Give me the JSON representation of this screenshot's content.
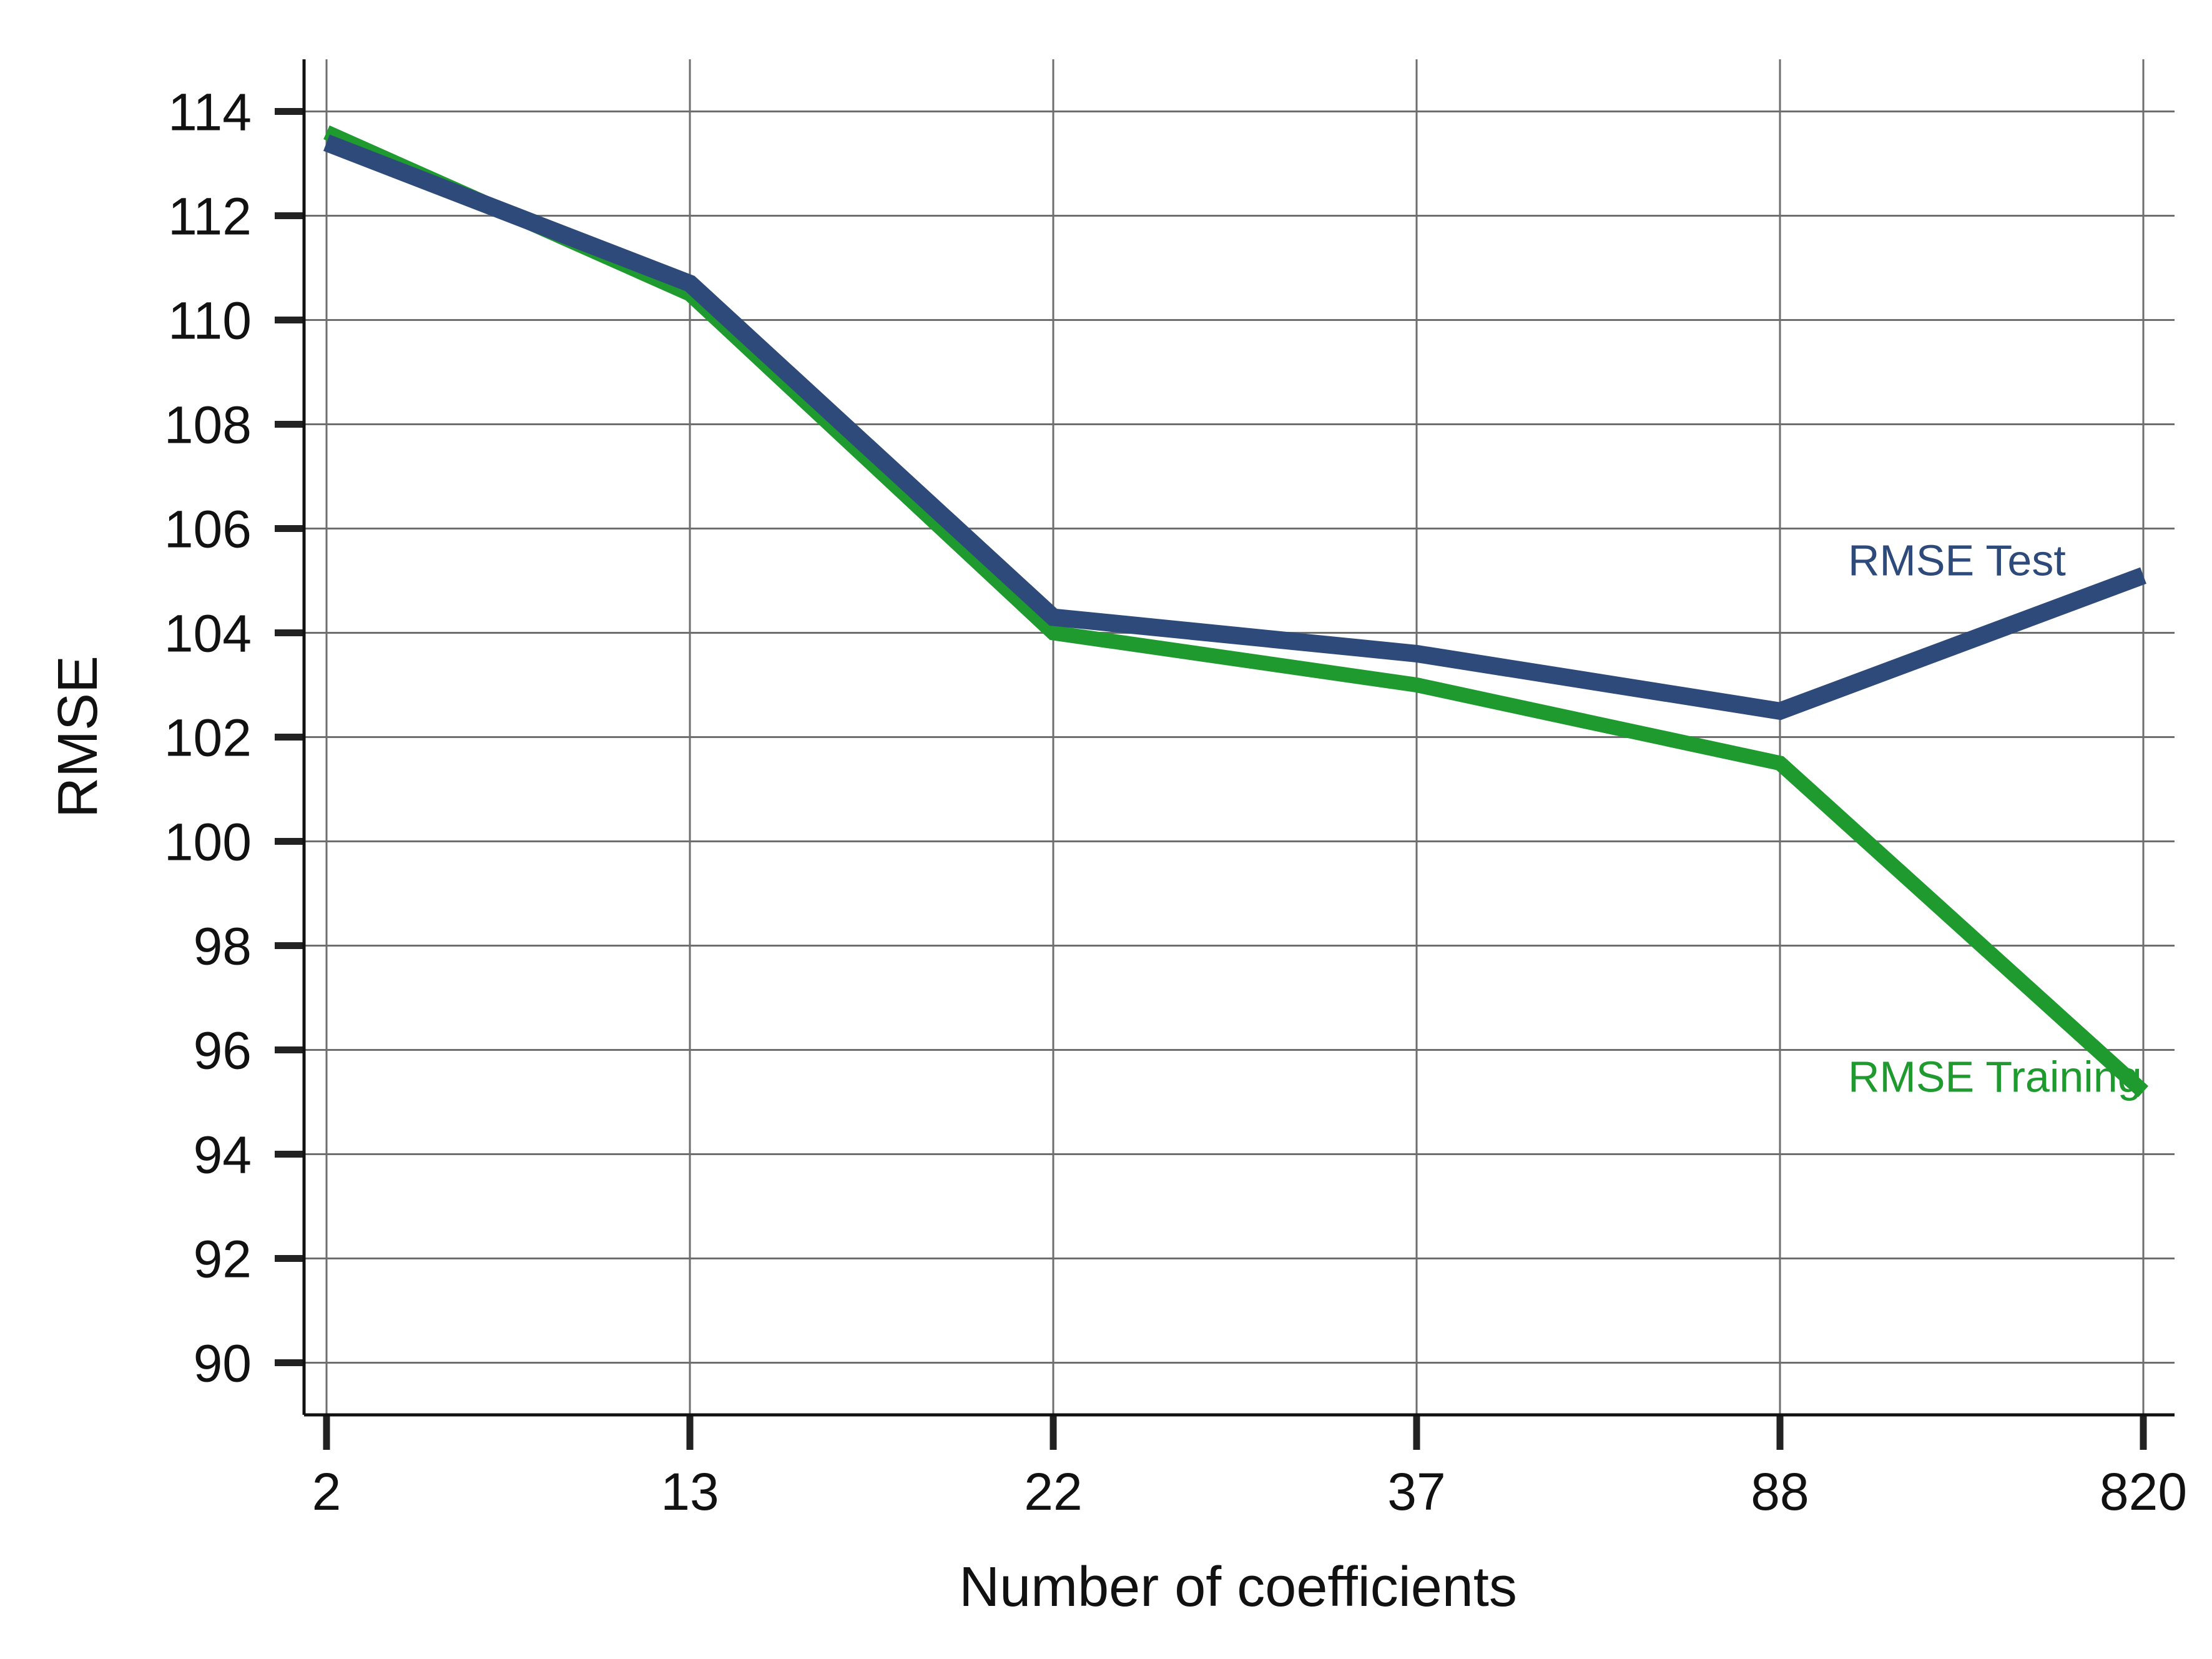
{
  "chart_data": {
    "type": "line",
    "xlabel": "Number of coefficients",
    "ylabel": "RMSE",
    "categories": [
      "2",
      "13",
      "22",
      "37",
      "88",
      "820"
    ],
    "ylim": [
      89,
      115
    ],
    "yticks": [
      90,
      92,
      94,
      96,
      98,
      100,
      102,
      104,
      106,
      108,
      110,
      112,
      114
    ],
    "grid": true,
    "series": [
      {
        "name": "RMSE Training",
        "color": "#1e9a2f",
        "values": [
          113.6,
          110.5,
          104.0,
          103.0,
          101.5,
          95.2
        ]
      },
      {
        "name": "RMSE Test",
        "color": "#2d4a7a",
        "values": [
          113.4,
          110.7,
          104.3,
          103.6,
          102.5,
          105.1
        ]
      }
    ]
  }
}
